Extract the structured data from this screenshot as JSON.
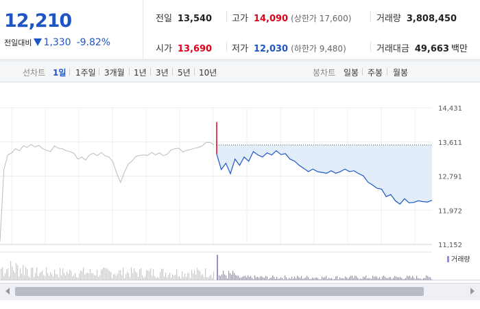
{
  "quote": {
    "price": "12,210",
    "change_label": "전일대비",
    "change_value": "1,330",
    "change_pct": "-9.82%",
    "prev_close": {
      "label": "전일",
      "value": "13,540"
    },
    "high": {
      "label": "고가",
      "value": "14,090",
      "sub": "(상한가 17,600)"
    },
    "volume": {
      "label": "거래량",
      "value": "3,808,450"
    },
    "open": {
      "label": "시가",
      "value": "13,690"
    },
    "low": {
      "label": "저가",
      "value": "12,030",
      "sub": "(하한가 9,480)"
    },
    "trade_amount": {
      "label": "거래대금",
      "value": "49,663",
      "unit": "백만"
    }
  },
  "tabs": {
    "line_chart_label": "선차트",
    "periods": [
      "1일",
      "1주일",
      "3개월",
      "1년",
      "3년",
      "5년",
      "10년"
    ],
    "candle_label": "봉차트",
    "candles": [
      "일봉",
      "주봉",
      "월봉"
    ]
  },
  "colors": {
    "up": "#e0001b",
    "down": "#1d55c4",
    "prev_day_line": "#bbbbbb",
    "fill": "#e3edfa",
    "volume_bar": "#9c8ac9"
  },
  "chart_data": {
    "type": "line",
    "y_ticks": [
      "14,431",
      "13,611",
      "12,791",
      "11,972",
      "11,152"
    ],
    "ylim": [
      11152,
      14431
    ],
    "reference_line": 13540,
    "prev_day_series": [
      11230,
      12950,
      13300,
      13350,
      13450,
      13400,
      13520,
      13480,
      13550,
      13490,
      13530,
      13450,
      13410,
      13380,
      13520,
      13460,
      13450,
      13400,
      13380,
      13340,
      13200,
      13250,
      13180,
      13300,
      13340,
      13280,
      13360,
      13280,
      13250,
      13140,
      12860,
      12640,
      12890,
      13080,
      13160,
      13270,
      13290,
      13300,
      13290,
      13360,
      13300,
      13350,
      13280,
      13320,
      13420,
      13450,
      13460,
      13370,
      13410,
      13430,
      13460,
      13480,
      13520,
      13600,
      13600,
      13540
    ],
    "today_series": [
      13320,
      12950,
      13100,
      12850,
      13200,
      13050,
      13250,
      13150,
      13380,
      13300,
      13250,
      13350,
      13300,
      13400,
      13310,
      13330,
      13200,
      13150,
      13050,
      12980,
      12900,
      12960,
      12900,
      12880,
      12860,
      12920,
      12860,
      12900,
      12960,
      12900,
      12920,
      12850,
      12800,
      12650,
      12580,
      12500,
      12480,
      12300,
      12350,
      12200,
      12120,
      12250,
      12150,
      12160,
      12200,
      12180,
      12170,
      12210
    ],
    "volume_label": "거래량"
  }
}
